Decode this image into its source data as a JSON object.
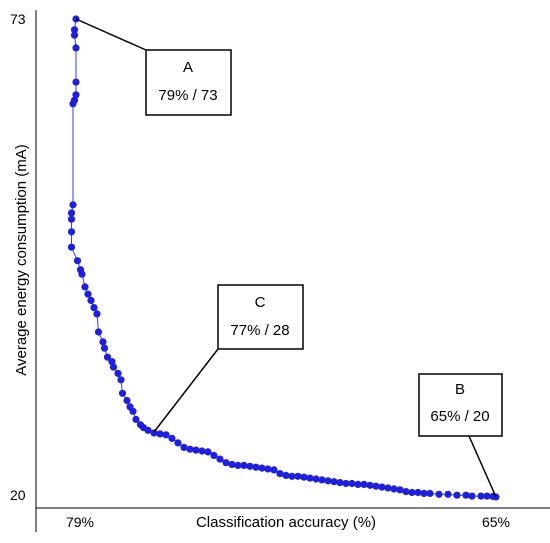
{
  "chart_data": {
    "type": "scatter",
    "title": "",
    "xlabel": "Classification accuracy (%)",
    "ylabel": "Average energy consumption (mA)",
    "x_direction": "descending",
    "xlim": [
      79,
      65
    ],
    "ylim": [
      20,
      73
    ],
    "x_ticks": [
      "79%",
      "65%"
    ],
    "y_ticks": [
      "73",
      "20"
    ],
    "grid": false,
    "legend": "none",
    "colors": {
      "series": "#1f1fe0",
      "line": "#3b3bff",
      "axis": "#000000"
    },
    "series": [
      {
        "points": [
          [
            79.0,
            73.0
          ],
          [
            79.05,
            71.8
          ],
          [
            79.05,
            71.2
          ],
          [
            79.0,
            69.8
          ],
          [
            79.0,
            66.0
          ],
          [
            79.0,
            64.6
          ],
          [
            79.05,
            64.0
          ],
          [
            79.1,
            63.6
          ],
          [
            79.1,
            52.4
          ],
          [
            79.15,
            51.5
          ],
          [
            79.15,
            50.8
          ],
          [
            79.15,
            49.4
          ],
          [
            79.15,
            47.7
          ],
          [
            78.95,
            46.2
          ],
          [
            78.85,
            45.2
          ],
          [
            78.8,
            44.7
          ],
          [
            78.7,
            43.3
          ],
          [
            78.6,
            42.5
          ],
          [
            78.5,
            41.8
          ],
          [
            78.4,
            41.0
          ],
          [
            78.3,
            40.3
          ],
          [
            78.25,
            38.3
          ],
          [
            78.1,
            37.2
          ],
          [
            78.05,
            36.5
          ],
          [
            77.95,
            35.5
          ],
          [
            77.8,
            35.0
          ],
          [
            77.75,
            34.4
          ],
          [
            77.6,
            33.7
          ],
          [
            77.5,
            33.0
          ],
          [
            77.45,
            31.5
          ],
          [
            77.3,
            30.7
          ],
          [
            77.2,
            30.0
          ],
          [
            77.1,
            29.5
          ],
          [
            77.0,
            28.6
          ],
          [
            76.85,
            28.0
          ],
          [
            76.75,
            27.7
          ],
          [
            76.6,
            27.4
          ],
          [
            76.4,
            27.1
          ],
          [
            76.2,
            27.0
          ],
          [
            76.0,
            26.9
          ],
          [
            75.8,
            26.5
          ],
          [
            75.6,
            26.0
          ],
          [
            75.4,
            25.5
          ],
          [
            75.2,
            25.3
          ],
          [
            75.0,
            25.2
          ],
          [
            74.8,
            25.1
          ],
          [
            74.6,
            25.0
          ],
          [
            74.4,
            24.6
          ],
          [
            74.2,
            24.2
          ],
          [
            74.0,
            23.8
          ],
          [
            73.8,
            23.6
          ],
          [
            73.6,
            23.5
          ],
          [
            73.4,
            23.5
          ],
          [
            73.2,
            23.4
          ],
          [
            73.0,
            23.3
          ],
          [
            72.8,
            23.2
          ],
          [
            72.6,
            23.1
          ],
          [
            72.4,
            23.0
          ],
          [
            72.2,
            22.6
          ],
          [
            72.0,
            22.4
          ],
          [
            71.8,
            22.3
          ],
          [
            71.6,
            22.3
          ],
          [
            71.4,
            22.2
          ],
          [
            71.2,
            22.1
          ],
          [
            71.0,
            22.0
          ],
          [
            70.8,
            21.9
          ],
          [
            70.6,
            21.8
          ],
          [
            70.4,
            21.7
          ],
          [
            70.2,
            21.6
          ],
          [
            70.0,
            21.5
          ],
          [
            69.8,
            21.5
          ],
          [
            69.6,
            21.4
          ],
          [
            69.4,
            21.4
          ],
          [
            69.2,
            21.3
          ],
          [
            69.0,
            21.2
          ],
          [
            68.8,
            21.1
          ],
          [
            68.6,
            21.0
          ],
          [
            68.4,
            20.9
          ],
          [
            68.2,
            20.8
          ],
          [
            68.0,
            20.6
          ],
          [
            67.8,
            20.5
          ],
          [
            67.6,
            20.5
          ],
          [
            67.4,
            20.4
          ],
          [
            67.2,
            20.4
          ],
          [
            66.9,
            20.3
          ],
          [
            66.6,
            20.3
          ],
          [
            66.3,
            20.2
          ],
          [
            66.0,
            20.2
          ],
          [
            65.8,
            20.1
          ],
          [
            65.5,
            20.1
          ],
          [
            65.3,
            20.1
          ],
          [
            65.1,
            20.05
          ],
          [
            65.0,
            20.0
          ]
        ]
      }
    ],
    "annotations": [
      {
        "label": "A",
        "text": "79% / 73",
        "x": 79,
        "y": 73
      },
      {
        "label": "C",
        "text": "77% / 28",
        "x": 77,
        "y": 28
      },
      {
        "label": "B",
        "text": "65% / 20",
        "x": 65,
        "y": 20
      }
    ]
  }
}
